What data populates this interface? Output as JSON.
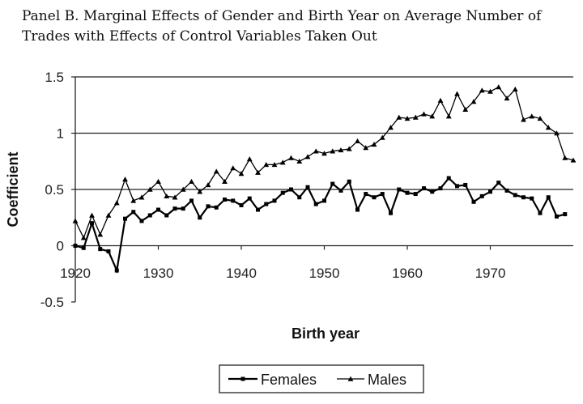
{
  "chart_data": {
    "type": "line",
    "title_line1": "Panel B.  Marginal Effects of Gender and Birth Year on Average Number of",
    "title_line2": "Trades with Effects of Control Variables Taken Out",
    "xlabel": "Birth year",
    "ylabel": "Coefficient",
    "xlim": [
      1920,
      1980
    ],
    "ylim": [
      -0.5,
      1.5
    ],
    "xticks": [
      1920,
      1930,
      1940,
      1950,
      1960,
      1970
    ],
    "xtick_labels": [
      "1920",
      "1930",
      "1940",
      "1950",
      "1960",
      "1970"
    ],
    "yticks": [
      -0.5,
      0,
      0.5,
      1,
      1.5
    ],
    "ytick_labels": [
      "-0.5",
      "0",
      "0.5",
      "1",
      "1.5"
    ],
    "grid": "horizontal",
    "legend_position": "bottom",
    "series": [
      {
        "name": "Females",
        "marker": "square",
        "color": "#000000",
        "x": [
          1920,
          1921,
          1922,
          1923,
          1924,
          1925,
          1926,
          1927,
          1928,
          1929,
          1930,
          1931,
          1932,
          1933,
          1934,
          1935,
          1936,
          1937,
          1938,
          1939,
          1940,
          1941,
          1942,
          1943,
          1944,
          1945,
          1946,
          1947,
          1948,
          1949,
          1950,
          1951,
          1952,
          1953,
          1954,
          1955,
          1956,
          1957,
          1958,
          1959,
          1960,
          1961,
          1962,
          1963,
          1964,
          1965,
          1966,
          1967,
          1968,
          1969,
          1970,
          1971,
          1972,
          1973,
          1974,
          1975,
          1976,
          1977,
          1978,
          1979
        ],
        "values": [
          0.0,
          -0.02,
          0.2,
          -0.03,
          -0.05,
          -0.22,
          0.24,
          0.3,
          0.22,
          0.27,
          0.32,
          0.27,
          0.33,
          0.33,
          0.4,
          0.25,
          0.35,
          0.34,
          0.41,
          0.4,
          0.36,
          0.42,
          0.32,
          0.37,
          0.4,
          0.47,
          0.5,
          0.43,
          0.52,
          0.37,
          0.4,
          0.55,
          0.49,
          0.57,
          0.32,
          0.46,
          0.43,
          0.46,
          0.29,
          0.5,
          0.47,
          0.46,
          0.51,
          0.48,
          0.51,
          0.6,
          0.53,
          0.54,
          0.39,
          0.44,
          0.48,
          0.56,
          0.49,
          0.45,
          0.43,
          0.42,
          0.29,
          0.43,
          0.26,
          0.28
        ]
      },
      {
        "name": "Males",
        "marker": "triangle",
        "color": "#000000",
        "x": [
          1920,
          1921,
          1922,
          1923,
          1924,
          1925,
          1926,
          1927,
          1928,
          1929,
          1930,
          1931,
          1932,
          1933,
          1934,
          1935,
          1936,
          1937,
          1938,
          1939,
          1940,
          1941,
          1942,
          1943,
          1944,
          1945,
          1946,
          1947,
          1948,
          1949,
          1950,
          1951,
          1952,
          1953,
          1954,
          1955,
          1956,
          1957,
          1958,
          1959,
          1960,
          1961,
          1962,
          1963,
          1964,
          1965,
          1966,
          1967,
          1968,
          1969,
          1970,
          1971,
          1972,
          1973,
          1974,
          1975,
          1976,
          1977,
          1978,
          1979,
          1980
        ],
        "values": [
          0.22,
          0.07,
          0.27,
          0.1,
          0.27,
          0.38,
          0.59,
          0.4,
          0.43,
          0.5,
          0.57,
          0.44,
          0.43,
          0.5,
          0.57,
          0.48,
          0.54,
          0.66,
          0.57,
          0.69,
          0.64,
          0.77,
          0.65,
          0.72,
          0.72,
          0.74,
          0.78,
          0.75,
          0.79,
          0.84,
          0.82,
          0.84,
          0.85,
          0.86,
          0.93,
          0.87,
          0.9,
          0.96,
          1.05,
          1.14,
          1.13,
          1.14,
          1.17,
          1.15,
          1.29,
          1.15,
          1.35,
          1.21,
          1.28,
          1.38,
          1.37,
          1.41,
          1.31,
          1.39,
          1.12,
          1.15,
          1.13,
          1.05,
          1.0,
          0.78,
          0.76
        ]
      }
    ]
  }
}
